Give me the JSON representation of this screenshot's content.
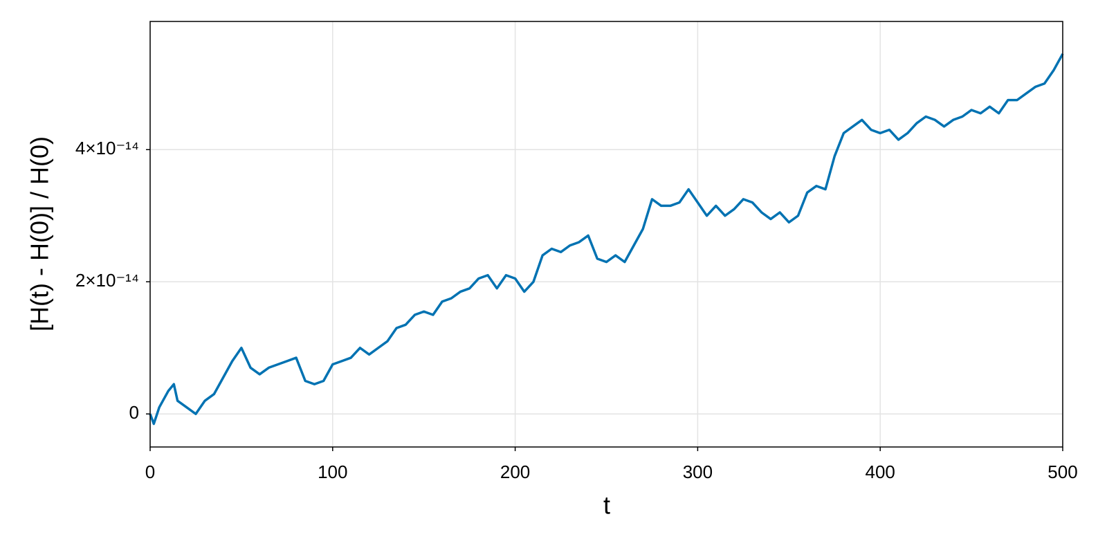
{
  "chart_data": {
    "type": "line",
    "xlabel": "t",
    "ylabel": "[H(t) - H(0)] / H(0)",
    "x": [
      0,
      2,
      5,
      10,
      13,
      15,
      20,
      25,
      30,
      35,
      40,
      45,
      50,
      55,
      60,
      65,
      70,
      75,
      80,
      85,
      90,
      95,
      100,
      105,
      110,
      115,
      120,
      125,
      130,
      135,
      140,
      145,
      150,
      155,
      160,
      165,
      170,
      175,
      180,
      185,
      190,
      195,
      200,
      205,
      210,
      215,
      220,
      225,
      230,
      235,
      240,
      245,
      250,
      255,
      260,
      265,
      270,
      275,
      280,
      285,
      290,
      295,
      300,
      305,
      310,
      315,
      320,
      325,
      330,
      335,
      340,
      345,
      350,
      355,
      360,
      365,
      370,
      375,
      380,
      385,
      390,
      395,
      400,
      405,
      410,
      415,
      420,
      425,
      430,
      435,
      440,
      445,
      450,
      455,
      460,
      465,
      470,
      475,
      480,
      485,
      490,
      495,
      500
    ],
    "series": [
      {
        "color": "#0072b2",
        "values": [
          0,
          -1.5e-15,
          1e-15,
          3.5e-15,
          4.5e-15,
          2e-15,
          1e-15,
          0.0,
          2e-15,
          3e-15,
          5.5e-15,
          8e-15,
          1e-14,
          7e-15,
          6e-15,
          7e-15,
          7.5e-15,
          8e-15,
          8.5e-15,
          5e-15,
          4.5e-15,
          5e-15,
          7.5e-15,
          8e-15,
          8.5e-15,
          1e-14,
          9e-15,
          1e-14,
          1.1e-14,
          1.3e-14,
          1.35e-14,
          1.5e-14,
          1.55e-14,
          1.5e-14,
          1.7e-14,
          1.75e-14,
          1.85e-14,
          1.9e-14,
          2.05e-14,
          2.1e-14,
          1.9e-14,
          2.1e-14,
          2.05e-14,
          1.85e-14,
          2e-14,
          2.4e-14,
          2.5e-14,
          2.45e-14,
          2.55e-14,
          2.6e-14,
          2.7e-14,
          2.35e-14,
          2.3e-14,
          2.4e-14,
          2.3e-14,
          2.55e-14,
          2.8e-14,
          3.25e-14,
          3.15e-14,
          3.15e-14,
          3.2e-14,
          3.4e-14,
          3.2e-14,
          3e-14,
          3.15e-14,
          3e-14,
          3.1e-14,
          3.25e-14,
          3.2e-14,
          3.05e-14,
          2.95e-14,
          3.05e-14,
          2.9e-14,
          3e-14,
          3.35e-14,
          3.45e-14,
          3.4e-14,
          3.9e-14,
          4.25e-14,
          4.35e-14,
          4.45e-14,
          4.3e-14,
          4.25e-14,
          4.3e-14,
          4.15e-14,
          4.25e-14,
          4.4e-14,
          4.5e-14,
          4.45e-14,
          4.35e-14,
          4.45e-14,
          4.5e-14,
          4.6e-14,
          4.55e-14,
          4.65e-14,
          4.55e-14,
          4.75e-14,
          4.75e-14,
          4.85e-14,
          4.95e-14,
          5e-14,
          5.2e-14,
          5.45e-14
        ]
      }
    ],
    "xlim": [
      0,
      500
    ],
    "xticks": [
      0,
      100,
      200,
      300,
      400,
      500
    ],
    "ylim": [
      -5e-15,
      5.94e-14
    ],
    "yticks": [
      0,
      {
        "value": 2e-14,
        "label": "2×10⁻¹⁴"
      },
      {
        "value": 4e-14,
        "label": "4×10⁻¹⁴"
      }
    ],
    "grid": true
  }
}
